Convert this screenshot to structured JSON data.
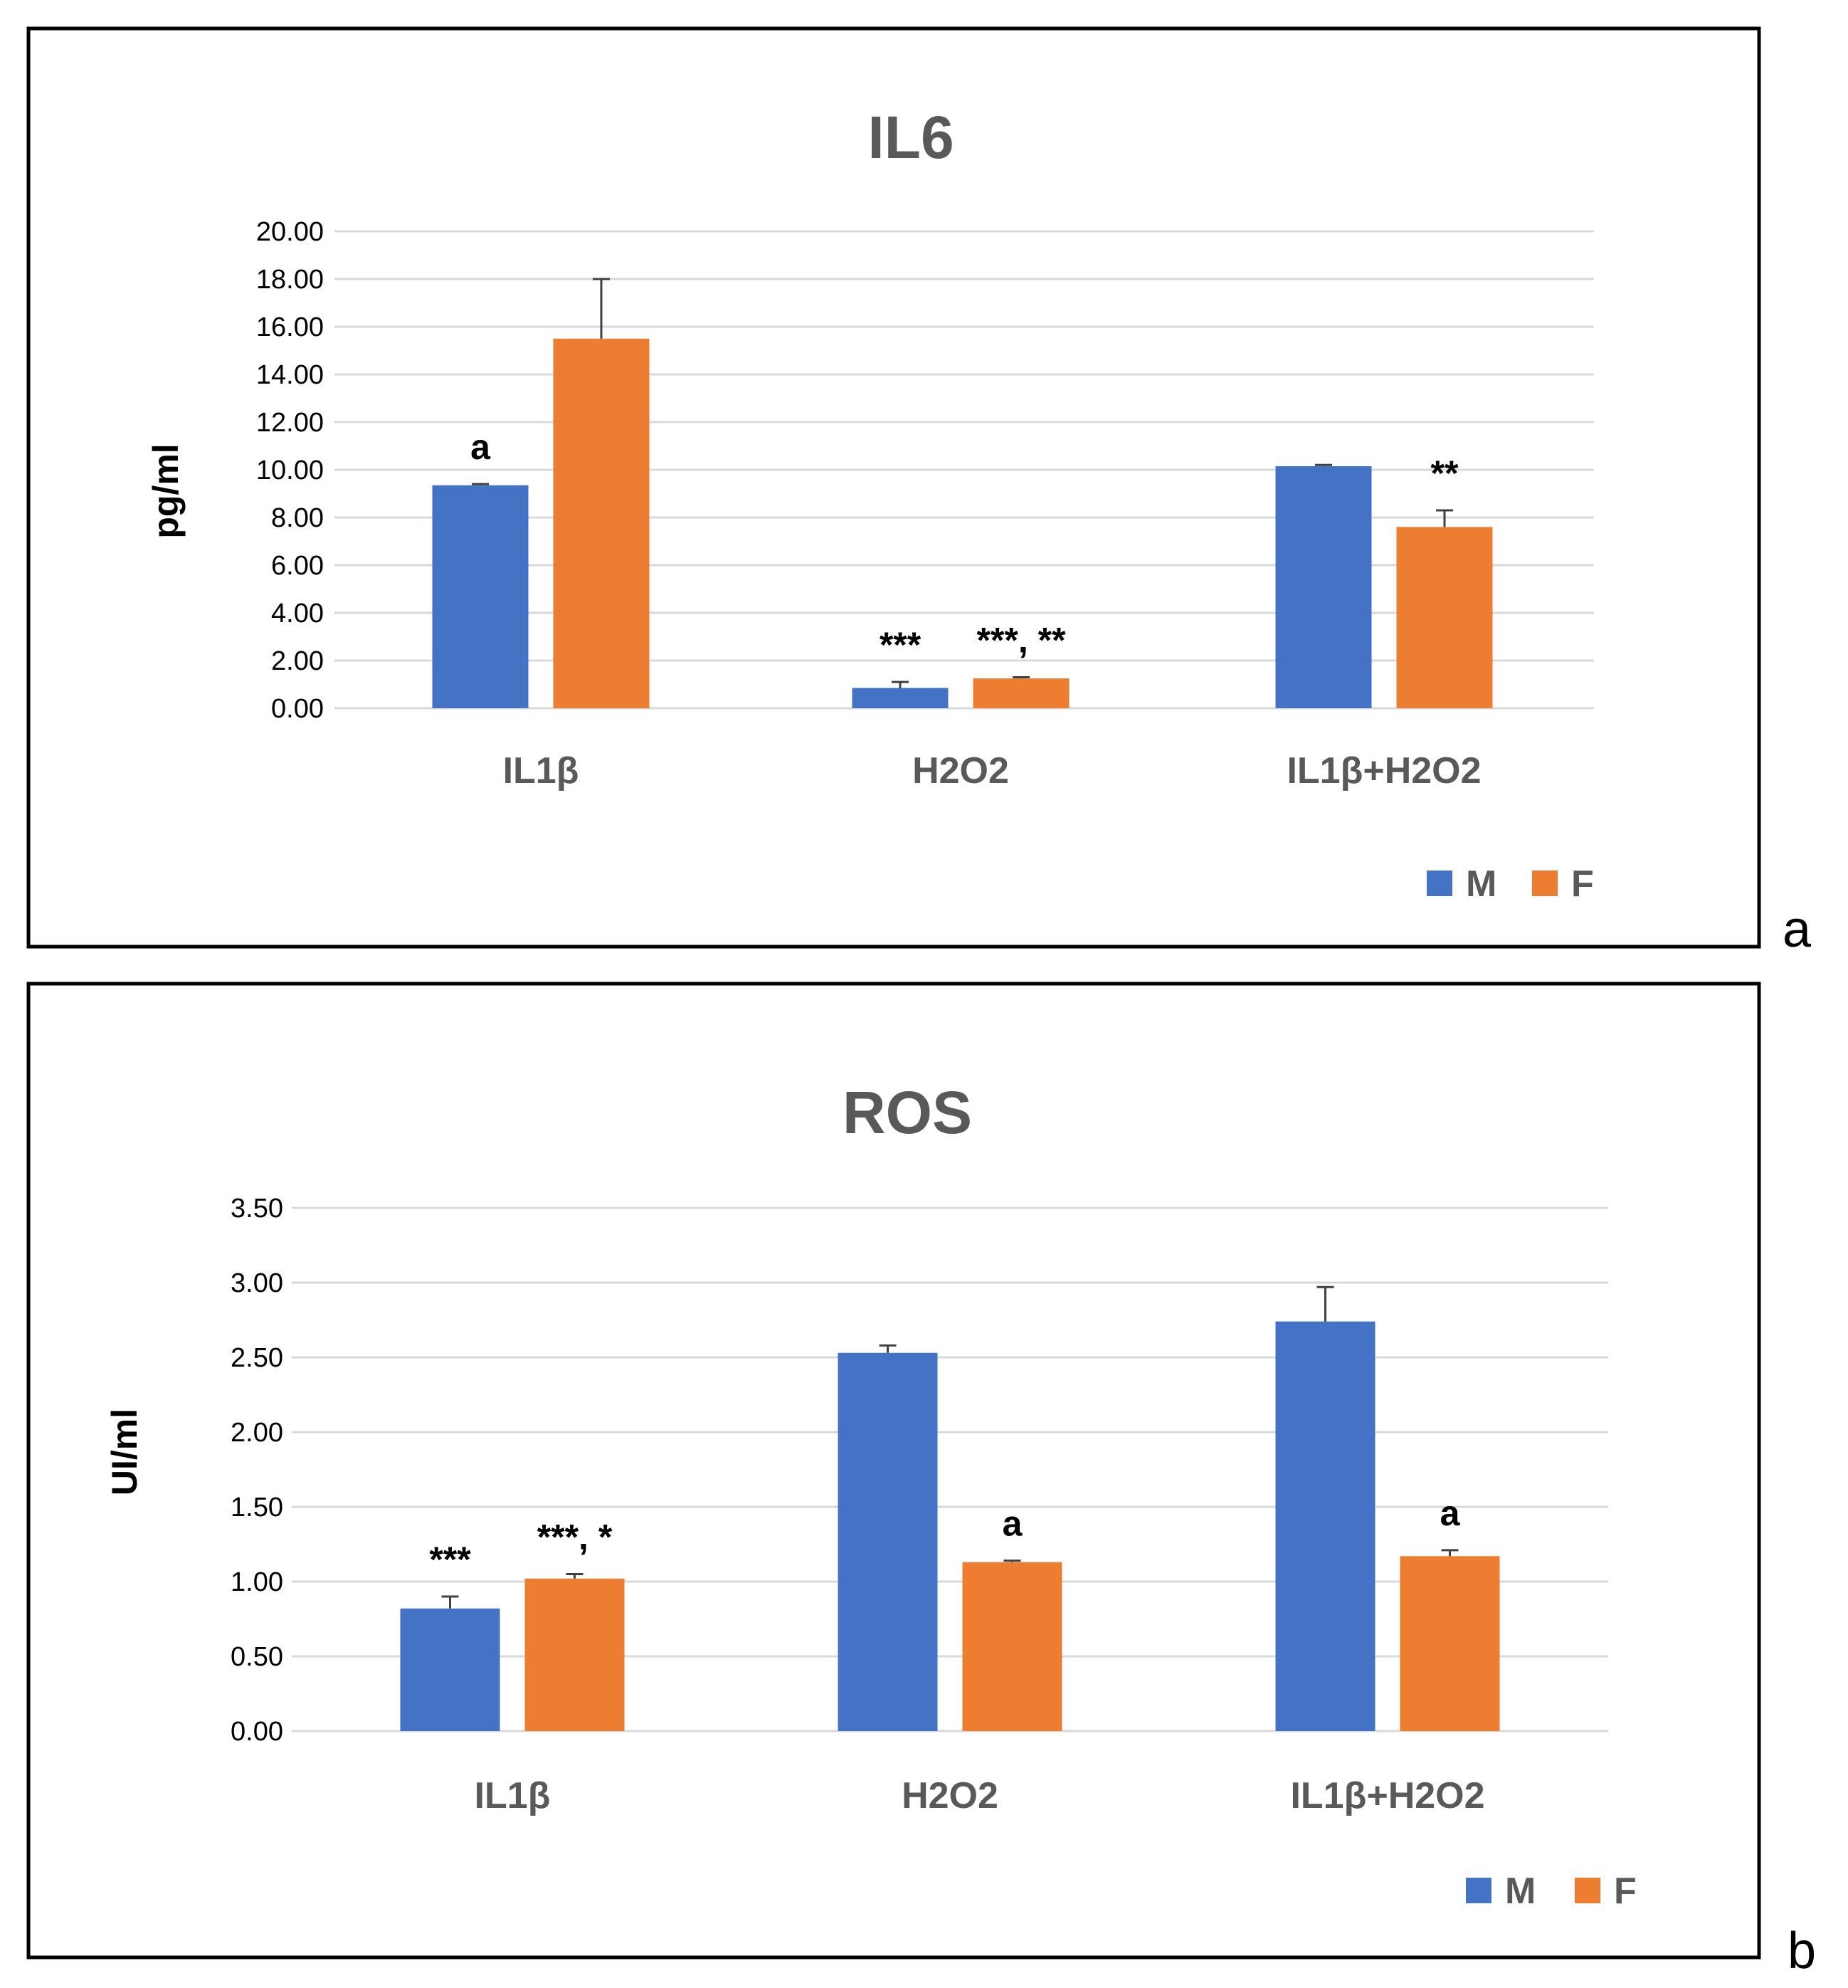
{
  "colors": {
    "M": "#4472C4",
    "F": "#ED7D31"
  },
  "chart_data": [
    {
      "id": "a",
      "type": "bar",
      "panel_label": "a",
      "title": "IL6",
      "xlabel": "",
      "ylabel": "pg/ml",
      "ylim": [
        0,
        20
      ],
      "yticks": [
        "0.00",
        "2.00",
        "4.00",
        "6.00",
        "8.00",
        "10.00",
        "12.00",
        "14.00",
        "16.00",
        "18.00",
        "20.00"
      ],
      "grid": true,
      "legend_position": "bottom-right",
      "categories": [
        "IL1β",
        "H2O2",
        "IL1β+H2O2"
      ],
      "series": [
        {
          "name": "M",
          "values": [
            9.35,
            0.85,
            10.15
          ],
          "errors": [
            0.05,
            0.25,
            0.05
          ],
          "annotations": [
            "a",
            "***",
            ""
          ]
        },
        {
          "name": "F",
          "values": [
            15.5,
            1.25,
            7.6
          ],
          "errors": [
            2.5,
            0.05,
            0.7
          ],
          "annotations": [
            "",
            "***, **",
            "**"
          ]
        }
      ]
    },
    {
      "id": "b",
      "type": "bar",
      "panel_label": "b",
      "title": "ROS",
      "xlabel": "",
      "ylabel": "UI/ml",
      "ylim": [
        0,
        3.5
      ],
      "yticks": [
        "0.00",
        "0.50",
        "1.00",
        "1.50",
        "2.00",
        "2.50",
        "3.00",
        "3.50"
      ],
      "grid": true,
      "legend_position": "bottom-right",
      "categories": [
        "IL1β",
        "H2O2",
        "IL1β+H2O2"
      ],
      "series": [
        {
          "name": "M",
          "values": [
            0.82,
            2.53,
            2.74
          ],
          "errors": [
            0.08,
            0.05,
            0.23
          ],
          "annotations": [
            "***",
            "",
            ""
          ]
        },
        {
          "name": "F",
          "values": [
            1.02,
            1.13,
            1.17
          ],
          "errors": [
            0.03,
            0.01,
            0.04
          ],
          "annotations": [
            "***, *",
            "a",
            "a"
          ]
        }
      ]
    }
  ]
}
